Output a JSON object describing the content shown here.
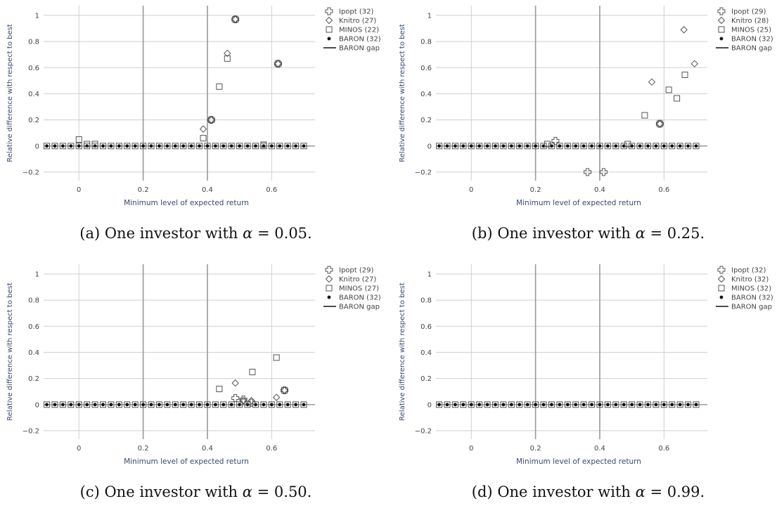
{
  "chart_data": [
    {
      "type": "scatter",
      "caption_label": "(a)",
      "caption_text": "One investor with",
      "caption_symbol": "α",
      "caption_value": "= 0.05.",
      "xlabel": "Minimum level of expected return",
      "ylabel": "Relative difference with respect to best",
      "xlim": [
        -0.11,
        0.735
      ],
      "ylim": [
        -0.265,
        1.075
      ],
      "x_ticks": [
        0,
        0.2,
        0.4,
        0.6
      ],
      "x_tick_labels": [
        "0",
        "0.2",
        "0.4",
        "0.6"
      ],
      "y_ticks": [
        -0.2,
        0,
        0.2,
        0.4,
        0.6,
        0.8,
        1
      ],
      "y_tick_labels": [
        "−0.2",
        "0",
        "0.2",
        "0.4",
        "0.6",
        "0.8",
        "1"
      ],
      "grid": true,
      "legend_position": "right",
      "series": [
        {
          "name": "Ipopt (32)",
          "marker": "cross-open",
          "points": [
            [
              0.412,
              0.2
            ],
            [
              0.487,
              0.97
            ],
            [
              0.62,
              0.63
            ]
          ]
        },
        {
          "name": "Knitro (27)",
          "marker": "diamond-open",
          "points": [
            [
              0.387,
              0.13
            ],
            [
              0.412,
              0.2
            ],
            [
              0.462,
              0.71
            ],
            [
              0.487,
              0.97
            ],
            [
              0.62,
              0.63
            ]
          ]
        },
        {
          "name": "MINOS (22)",
          "marker": "square-open",
          "points": [
            [
              0.0,
              0.05
            ],
            [
              0.025,
              0.015
            ],
            [
              0.05,
              0.015
            ],
            [
              0.387,
              0.06
            ],
            [
              0.412,
              0.2
            ],
            [
              0.437,
              0.455
            ],
            [
              0.462,
              0.67
            ],
            [
              0.487,
              0.97
            ],
            [
              0.575,
              0.01
            ],
            [
              0.62,
              0.63
            ]
          ]
        },
        {
          "name": "BARON (32)",
          "marker": "dot",
          "points": "all_zero"
        },
        {
          "name": "BARON gap",
          "marker": "line",
          "points": []
        }
      ]
    },
    {
      "type": "scatter",
      "caption_label": "(b)",
      "caption_text": "One investor with",
      "caption_symbol": "α",
      "caption_value": "= 0.25.",
      "xlabel": "Minimum level of expected return",
      "ylabel": "Relative difference with respect to best",
      "xlim": [
        -0.11,
        0.735
      ],
      "ylim": [
        -0.265,
        1.075
      ],
      "x_ticks": [
        0,
        0.2,
        0.4,
        0.6
      ],
      "x_tick_labels": [
        "0",
        "0.2",
        "0.4",
        "0.6"
      ],
      "y_ticks": [
        -0.2,
        0,
        0.2,
        0.4,
        0.6,
        0.8,
        1
      ],
      "y_tick_labels": [
        "−0.2",
        "0",
        "0.2",
        "0.4",
        "0.6",
        "0.8",
        "1"
      ],
      "grid": true,
      "legend_position": "right",
      "series": [
        {
          "name": "Ipopt (29)",
          "marker": "cross-open",
          "points": [
            [
              0.262,
              0.04
            ],
            [
              0.362,
              -0.2
            ],
            [
              0.412,
              -0.2
            ],
            [
              0.587,
              0.17
            ]
          ]
        },
        {
          "name": "Knitro (28)",
          "marker": "diamond-open",
          "points": [
            [
              0.562,
              0.49
            ],
            [
              0.587,
              0.17
            ],
            [
              0.662,
              0.89
            ],
            [
              0.695,
              0.63
            ]
          ]
        },
        {
          "name": "MINOS (25)",
          "marker": "square-open",
          "points": [
            [
              0.237,
              0.015
            ],
            [
              0.487,
              0.015
            ],
            [
              0.54,
              0.235
            ],
            [
              0.587,
              0.17
            ],
            [
              0.615,
              0.43
            ],
            [
              0.64,
              0.365
            ],
            [
              0.665,
              0.545
            ]
          ]
        },
        {
          "name": "BARON (32)",
          "marker": "dot",
          "points": "all_zero"
        },
        {
          "name": "BARON gap",
          "marker": "line",
          "points": []
        }
      ]
    },
    {
      "type": "scatter",
      "caption_label": "(c)",
      "caption_text": "One investor with",
      "caption_symbol": "α",
      "caption_value": "= 0.50.",
      "xlabel": "Minimum level of expected return",
      "ylabel": "Relative difference with respect to best",
      "xlim": [
        -0.11,
        0.735
      ],
      "ylim": [
        -0.265,
        1.075
      ],
      "x_ticks": [
        0,
        0.2,
        0.4,
        0.6
      ],
      "x_tick_labels": [
        "0",
        "0.2",
        "0.4",
        "0.6"
      ],
      "y_ticks": [
        -0.2,
        0,
        0.2,
        0.4,
        0.6,
        0.8,
        1
      ],
      "y_tick_labels": [
        "−0.2",
        "0",
        "0.2",
        "0.4",
        "0.6",
        "0.8",
        "1"
      ],
      "grid": true,
      "legend_position": "right",
      "series": [
        {
          "name": "Ipopt (29)",
          "marker": "cross-open",
          "points": [
            [
              0.487,
              0.05
            ],
            [
              0.512,
              0.04
            ],
            [
              0.537,
              0.015
            ],
            [
              0.64,
              0.11
            ]
          ]
        },
        {
          "name": "Knitro (27)",
          "marker": "diamond-open",
          "points": [
            [
              0.487,
              0.165
            ],
            [
              0.512,
              0.03
            ],
            [
              0.537,
              0.03
            ],
            [
              0.615,
              0.055
            ],
            [
              0.64,
              0.11
            ]
          ]
        },
        {
          "name": "MINOS (27)",
          "marker": "square-open",
          "points": [
            [
              0.437,
              0.12
            ],
            [
              0.512,
              0.02
            ],
            [
              0.54,
              0.25
            ],
            [
              0.615,
              0.36
            ],
            [
              0.64,
              0.11
            ]
          ]
        },
        {
          "name": "BARON (32)",
          "marker": "dot",
          "points": "all_zero"
        },
        {
          "name": "BARON gap",
          "marker": "line",
          "points": []
        }
      ]
    },
    {
      "type": "scatter",
      "caption_label": "(d)",
      "caption_text": "One investor with",
      "caption_symbol": "α",
      "caption_value": "= 0.99.",
      "xlabel": "Minimum level of expected return",
      "ylabel": "Relative difference with respect to best",
      "xlim": [
        -0.11,
        0.735
      ],
      "ylim": [
        -0.265,
        1.075
      ],
      "x_ticks": [
        0,
        0.2,
        0.4,
        0.6
      ],
      "x_tick_labels": [
        "0",
        "0.2",
        "0.4",
        "0.6"
      ],
      "y_ticks": [
        -0.2,
        0,
        0.2,
        0.4,
        0.6,
        0.8,
        1
      ],
      "y_tick_labels": [
        "−0.2",
        "0",
        "0.2",
        "0.4",
        "0.6",
        "0.8",
        "1"
      ],
      "grid": true,
      "legend_position": "right",
      "series": [
        {
          "name": "Ipopt (32)",
          "marker": "cross-open",
          "points": []
        },
        {
          "name": "Knitro (32)",
          "marker": "diamond-open",
          "points": []
        },
        {
          "name": "MINOS (32)",
          "marker": "square-open",
          "points": []
        },
        {
          "name": "BARON (32)",
          "marker": "dot",
          "points": "all_zero"
        },
        {
          "name": "BARON gap",
          "marker": "line",
          "points": []
        }
      ]
    }
  ],
  "x_grid_values": [
    -0.1,
    -0.075,
    -0.05,
    -0.025,
    0,
    0.025,
    0.05,
    0.075,
    0.1,
    0.125,
    0.15,
    0.175,
    0.2,
    0.225,
    0.25,
    0.275,
    0.3,
    0.325,
    0.35,
    0.375,
    0.4,
    0.425,
    0.45,
    0.475,
    0.5,
    0.525,
    0.55,
    0.575,
    0.6,
    0.625,
    0.65,
    0.675,
    0.7
  ],
  "colors": {
    "grid": "#cfcfcf",
    "grid_major": "#999999",
    "tick_text": "#444444",
    "axis_label": "#3a4a6b",
    "marker": "#555555"
  }
}
